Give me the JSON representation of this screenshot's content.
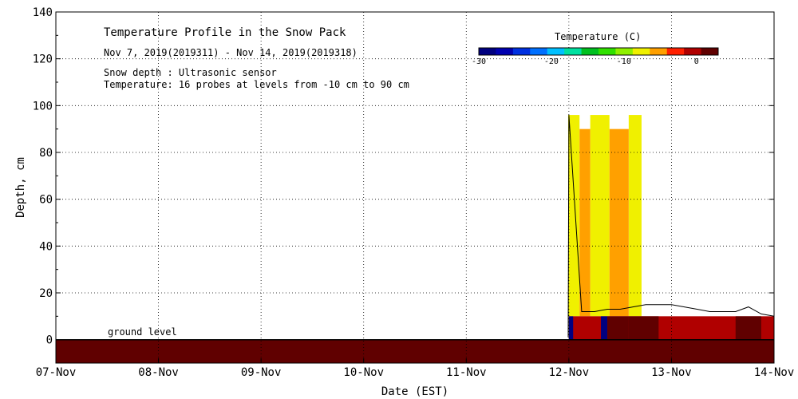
{
  "chart_data": {
    "type": "area",
    "title": "Temperature Profile in the Snow Pack",
    "subtitle": "Nov  7, 2019(2019311) - Nov 14, 2019(2019318)",
    "notes": [
      "Snow depth : Ultrasonic sensor",
      "Temperature: 16 probes at levels from -10 cm to 90 cm"
    ],
    "xlabel": "Date (EST)",
    "ylabel": "Depth, cm",
    "xlim": [
      0,
      7
    ],
    "ylim": [
      -10,
      140
    ],
    "grid": true,
    "x_tick_labels": [
      "07-Nov",
      "08-Nov",
      "09-Nov",
      "10-Nov",
      "11-Nov",
      "12-Nov",
      "13-Nov",
      "14-Nov"
    ],
    "y_ticks": [
      0,
      20,
      40,
      60,
      80,
      100,
      120,
      140
    ],
    "ground_label": "ground level",
    "colorbar": {
      "title": "Temperature (C)",
      "placement": "top-right",
      "tick_labels": [
        "-30",
        "-20",
        "-10",
        "0"
      ],
      "range": [
        -30,
        3
      ],
      "colors": [
        "#000080",
        "#0000b0",
        "#0030e0",
        "#0070ff",
        "#00c0ff",
        "#00e0a0",
        "#00c020",
        "#30e000",
        "#90f000",
        "#f0f000",
        "#ffa000",
        "#ff2000",
        "#b00000",
        "#600000"
      ]
    },
    "snow_depth_series": {
      "name": "Snow depth",
      "x": [
        "11-Nov 23:50",
        "12-Nov 00:00",
        "12-Nov 03:00",
        "12-Nov 06:00",
        "12-Nov 09:00",
        "12-Nov 12:00",
        "12-Nov 15:00",
        "12-Nov 18:00",
        "12-Nov 21:00",
        "13-Nov 00:00",
        "13-Nov 03:00",
        "13-Nov 06:00",
        "13-Nov 09:00",
        "13-Nov 12:00",
        "13-Nov 15:00",
        "13-Nov 18:00",
        "13-Nov 21:00",
        "14-Nov 00:00"
      ],
      "y": [
        1,
        96,
        12,
        12,
        13,
        13,
        14,
        15,
        15,
        15,
        14,
        13,
        12,
        12,
        12,
        14,
        11,
        10
      ]
    },
    "temperature_regions": [
      {
        "x": [
          "11-Nov 23:50",
          "12-Nov 02:30"
        ],
        "depth": [
          10,
          96
        ],
        "temp": -8
      },
      {
        "x": [
          "12-Nov 05:00",
          "12-Nov 09:30"
        ],
        "depth": [
          10,
          96
        ],
        "temp": -8
      },
      {
        "x": [
          "12-Nov 14:00",
          "12-Nov 17:00"
        ],
        "depth": [
          10,
          96
        ],
        "temp": -8
      },
      {
        "x": [
          "12-Nov 02:30",
          "12-Nov 05:00"
        ],
        "depth": [
          10,
          90
        ],
        "temp": -5
      },
      {
        "x": [
          "12-Nov 09:30",
          "12-Nov 14:00"
        ],
        "depth": [
          10,
          90
        ],
        "temp": -5
      },
      {
        "x": [
          "12-Nov 00:00",
          "14-Nov 00:00"
        ],
        "depth": [
          0,
          10
        ],
        "temp": -1
      },
      {
        "x": [
          "12-Nov 07:30",
          "12-Nov 09:00"
        ],
        "depth": [
          0,
          10
        ],
        "temp": -28
      },
      {
        "x": [
          "12-Nov 09:00",
          "12-Nov 14:00"
        ],
        "depth": [
          0,
          10
        ],
        "temp": 1
      },
      {
        "x": [
          "12-Nov 14:00",
          "12-Nov 21:00"
        ],
        "depth": [
          0,
          10
        ],
        "temp": 3
      },
      {
        "x": [
          "13-Nov 15:00",
          "13-Nov 21:00"
        ],
        "depth": [
          0,
          10
        ],
        "temp": 3
      },
      {
        "x": [
          "12-Nov 00:00",
          "12-Nov 01:00"
        ],
        "depth": [
          0,
          10
        ],
        "temp": -28
      },
      {
        "x": [
          "07-Nov 00:00",
          "14-Nov 00:00"
        ],
        "depth": [
          -10,
          0
        ],
        "temp": 1
      }
    ]
  }
}
